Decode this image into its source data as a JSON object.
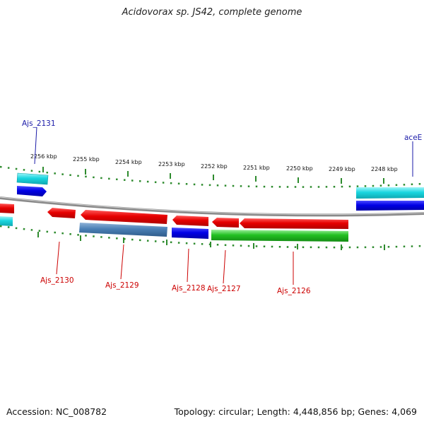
{
  "title": "Acidovorax sp. JS42, complete genome",
  "footer": {
    "accession": "Accession: NC_008782",
    "topology": "Topology: circular; Length: 4,448,856 bp; Genes: 4,069"
  },
  "colors": {
    "forward_label": "#1a1aa8",
    "reverse_label": "#cc0000",
    "tick": "#2e8b2e",
    "backbone": "#8a8a8a",
    "red": "#e60000",
    "blue": "#0000e6",
    "cyan": "#19d6e0",
    "steelblue": "#4a7fb5",
    "green": "#22c022"
  },
  "scale_labels": [
    "2256 kbp",
    "2255 kbp",
    "2254 kbp",
    "2253 kbp",
    "2252 kbp",
    "2251 kbp",
    "2250 kbp",
    "2249 kbp",
    "2248 kbp"
  ],
  "gene_labels": {
    "ajs_2131": "Ajs_2131",
    "acee": "aceE",
    "ajs_2130": "Ajs_2130",
    "ajs_2129": "Ajs_2129",
    "ajs_2128": "Ajs_2128",
    "ajs_2127": "Ajs_2127",
    "ajs_2126": "Ajs_2126"
  }
}
